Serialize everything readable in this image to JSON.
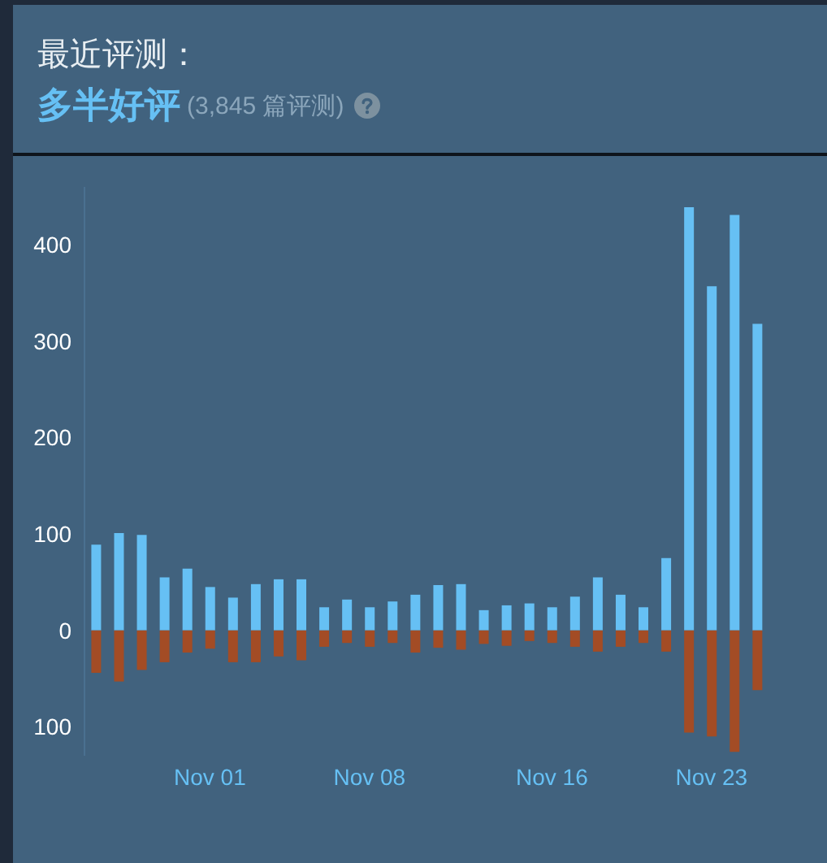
{
  "chart_data": {
    "type": "bar",
    "title": "最近评测：",
    "subtitle": "多半好评",
    "annotations": [
      "(3,845 篇评测)"
    ],
    "categories": [
      null,
      null,
      null,
      null,
      null,
      "Nov 01",
      null,
      null,
      null,
      null,
      null,
      null,
      "Nov 08",
      null,
      null,
      null,
      null,
      null,
      null,
      null,
      "Nov 16",
      null,
      null,
      null,
      null,
      null,
      null,
      "Nov 23",
      null,
      null
    ],
    "series": [
      {
        "color": "#66c0f4",
        "values": [
          89,
          101,
          99,
          55,
          64,
          45,
          34,
          48,
          53,
          53,
          24,
          32,
          24,
          30,
          37,
          47,
          48,
          21,
          26,
          28,
          24,
          35,
          55,
          37,
          24,
          75,
          439,
          357,
          431,
          318
        ]
      },
      {
        "color": "#a34c25",
        "values": [
          -44,
          -53,
          -41,
          -33,
          -23,
          -19,
          -33,
          -33,
          -27,
          -31,
          -17,
          -13,
          -17,
          -13,
          -23,
          -18,
          -20,
          -14,
          -16,
          -11,
          -13,
          -17,
          -22,
          -17,
          -13,
          -22,
          -106,
          -110,
          -126,
          -62
        ]
      }
    ],
    "stacked": true,
    "ylim": [
      -130,
      460
    ],
    "yticks": [
      {
        "value": -100,
        "label": "100"
      },
      0,
      100,
      200,
      300,
      400
    ],
    "grid": false,
    "legend": false
  }
}
